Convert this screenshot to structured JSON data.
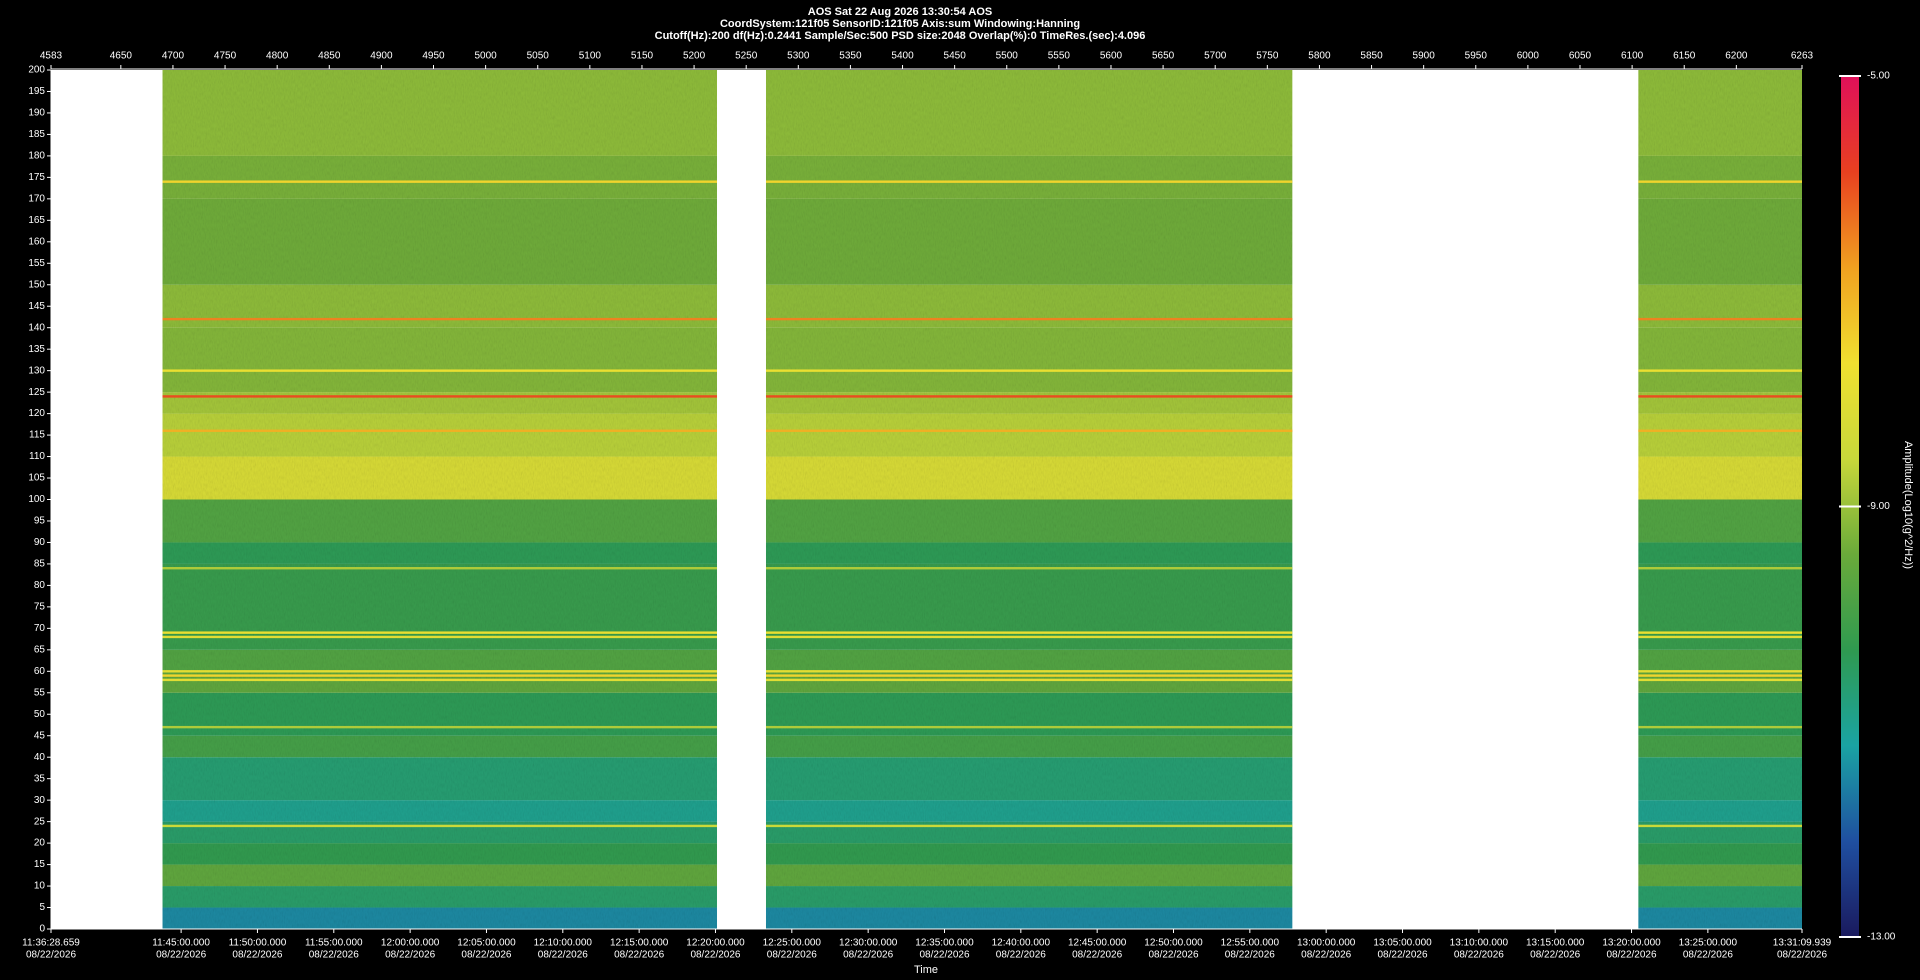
{
  "chart_data": {
    "type": "spectrogram",
    "title": "AOS  Sat 22 Aug 2026 13:30:54  AOS",
    "subtitle": "CoordSystem:121f05   SensorID:121f05   Axis:sum   Windowing:Hanning",
    "subtitle2": "Cutoff(Hz):200   df(Hz):0.2441   Sample/Sec:500   PSD size:2048   Overlap(%):0   TimeRes.(sec):4.096",
    "xlim": [
      4583,
      6263
    ],
    "xticks": [
      4583,
      4650,
      4700,
      4750,
      4800,
      4850,
      4900,
      4950,
      5000,
      5050,
      5100,
      5150,
      5200,
      5250,
      5300,
      5350,
      5400,
      5450,
      5500,
      5550,
      5600,
      5650,
      5700,
      5750,
      5800,
      5850,
      5900,
      5950,
      6000,
      6050,
      6100,
      6150,
      6200,
      6263
    ],
    "x2label": "Time",
    "x2lim": [
      0,
      6881.28
    ],
    "x2ticks": [
      {
        "value": 0,
        "label": "11:36:28.659",
        "sublabel": "08/22/2026"
      },
      {
        "value": 511.341,
        "label": "11:45:00.000",
        "sublabel": "08/22/2026"
      },
      {
        "value": 811.341,
        "label": "11:50:00.000",
        "sublabel": "08/22/2026"
      },
      {
        "value": 1111.341,
        "label": "11:55:00.000",
        "sublabel": "08/22/2026"
      },
      {
        "value": 1411.341,
        "label": "12:00:00.000",
        "sublabel": "08/22/2026"
      },
      {
        "value": 1711.341,
        "label": "12:05:00.000",
        "sublabel": "08/22/2026"
      },
      {
        "value": 2011.341,
        "label": "12:10:00.000",
        "sublabel": "08/22/2026"
      },
      {
        "value": 2311.341,
        "label": "12:15:00.000",
        "sublabel": "08/22/2026"
      },
      {
        "value": 2611.341,
        "label": "12:20:00.000",
        "sublabel": "08/22/2026"
      },
      {
        "value": 2911.341,
        "label": "12:25:00.000",
        "sublabel": "08/22/2026"
      },
      {
        "value": 3211.341,
        "label": "12:30:00.000",
        "sublabel": "08/22/2026"
      },
      {
        "value": 3511.341,
        "label": "12:35:00.000",
        "sublabel": "08/22/2026"
      },
      {
        "value": 3811.341,
        "label": "12:40:00.000",
        "sublabel": "08/22/2026"
      },
      {
        "value": 4111.341,
        "label": "12:45:00.000",
        "sublabel": "08/22/2026"
      },
      {
        "value": 4411.341,
        "label": "12:50:00.000",
        "sublabel": "08/22/2026"
      },
      {
        "value": 4711.341,
        "label": "12:55:00.000",
        "sublabel": "08/22/2026"
      },
      {
        "value": 5011.341,
        "label": "13:00:00.000",
        "sublabel": "08/22/2026"
      },
      {
        "value": 5311.341,
        "label": "13:05:00.000",
        "sublabel": "08/22/2026"
      },
      {
        "value": 5611.341,
        "label": "13:10:00.000",
        "sublabel": "08/22/2026"
      },
      {
        "value": 5911.341,
        "label": "13:15:00.000",
        "sublabel": "08/22/2026"
      },
      {
        "value": 6211.341,
        "label": "13:20:00.000",
        "sublabel": "08/22/2026"
      },
      {
        "value": 6511.341,
        "label": "13:25:00.000",
        "sublabel": "08/22/2026"
      },
      {
        "value": 6881.28,
        "label": "13:31:09.939",
        "sublabel": "08/22/2026"
      }
    ],
    "ylim": [
      0,
      200
    ],
    "yticks": [
      0,
      5,
      10,
      15,
      20,
      25,
      30,
      35,
      40,
      45,
      50,
      55,
      60,
      65,
      70,
      75,
      80,
      85,
      90,
      95,
      100,
      105,
      110,
      115,
      120,
      125,
      130,
      135,
      140,
      145,
      150,
      155,
      160,
      165,
      170,
      175,
      180,
      185,
      190,
      195,
      200
    ],
    "data_segments": [
      [
        4690,
        5222
      ],
      [
        5269,
        5774
      ],
      [
        6106,
        6263
      ]
    ],
    "profile": {
      "bins": [
        0,
        5,
        10,
        15,
        20,
        25,
        30,
        40,
        45,
        55,
        60,
        65,
        85,
        90,
        100,
        110,
        120,
        125,
        140,
        150,
        170,
        180,
        200
      ],
      "values": [
        -11.5,
        -10.6,
        -9.6,
        -10.3,
        -10.6,
        -11,
        -10.7,
        -10,
        -10.4,
        -9.6,
        -9.8,
        -10.2,
        -10.4,
        -9.8,
        -8.2,
        -8.7,
        -8.9,
        -9.2,
        -9.1,
        -9.4,
        -9.3,
        -9.1
      ]
    },
    "spectral_lines": {
      "frequencies": [
        174,
        142,
        130,
        124,
        116,
        84,
        69,
        68,
        60,
        59,
        58,
        47,
        24
      ],
      "values": [
        -7.5,
        -6.5,
        -7.8,
        -6,
        -7,
        -8.8,
        -7.8,
        -8,
        -8,
        -7.5,
        -8,
        -8.8,
        -8.5
      ]
    },
    "colorbar_label": "Amplitude(Log10(g^2/Hz))",
    "clim": [
      -13,
      -5
    ],
    "cticks": [
      {
        "value": -13,
        "label": "-13.00"
      },
      {
        "value": -9,
        "label": "-9.00"
      },
      {
        "value": -5,
        "label": "-5.00"
      }
    ],
    "colormap": [
      "#1a1a5e",
      "#1f4fa0",
      "#1aa3a3",
      "#2f9a50",
      "#6aaa3a",
      "#c8d83a",
      "#f0e030",
      "#f0a020",
      "#e84020",
      "#e0105a"
    ]
  }
}
